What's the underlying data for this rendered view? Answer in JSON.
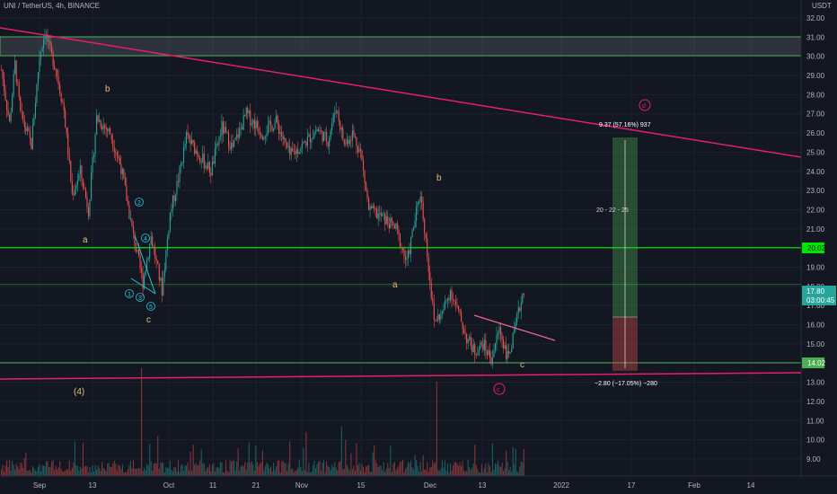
{
  "header": {
    "title": "UNI / TetherUS, 4h, BINANCE"
  },
  "price_axis": {
    "currency": "USDT"
  },
  "colors": {
    "background": "#131722",
    "grid": "#1e222d",
    "up": "#26a69a",
    "down": "#ef5350",
    "trend": "#e91e63",
    "level": "#4caf50",
    "bright_level": "#00e600",
    "text": "#b2b5be",
    "wave": "#e0c074",
    "cyan": "#26c6da"
  },
  "badges": {
    "level_20": "20.02",
    "level_14": "14.02",
    "current_price": "17.80",
    "countdown": "03:00:45"
  },
  "annotations": {
    "labels": [
      "b",
      "a",
      "c",
      "(4)",
      "b",
      "a",
      "c"
    ],
    "circled": [
      "1",
      "2",
      "3",
      "4",
      "5"
    ],
    "circled_c": "c",
    "circled_d": "d"
  },
  "measure": {
    "top_text": "9.37 (57.16%) 937",
    "mid_text": "20 - 22 - 25",
    "bottom_text": "−2.80 (−17.05%) −280"
  },
  "chart_data": {
    "type": "candlestick",
    "title": "UNI / TetherUS, 4h, BINANCE",
    "ylabel": "USDT",
    "ylim": [
      8.2,
      32.8
    ],
    "y_ticks": [
      "32.00",
      "31.00",
      "30.00",
      "29.00",
      "28.00",
      "27.00",
      "26.00",
      "25.00",
      "24.00",
      "23.00",
      "22.00",
      "21.00",
      "20.00",
      "19.00",
      "18.00",
      "17.00",
      "16.00",
      "15.00",
      "14.00",
      "13.00",
      "12.00",
      "11.00",
      "10.00",
      "9.00"
    ],
    "x_ticks": [
      "Sep",
      "13",
      "Oct",
      "11",
      "21",
      "Nov",
      "15",
      "Dec",
      "13",
      "2022",
      "17",
      "Feb",
      "14"
    ],
    "price_path": [
      {
        "t": 0,
        "p": 29.3
      },
      {
        "t": 6,
        "p": 26.5
      },
      {
        "t": 10,
        "p": 29.6
      },
      {
        "t": 14,
        "p": 27.0
      },
      {
        "t": 22,
        "p": 25.4
      },
      {
        "t": 28,
        "p": 30.0
      },
      {
        "t": 32,
        "p": 31.3
      },
      {
        "t": 36,
        "p": 30.2
      },
      {
        "t": 40,
        "p": 29.4
      },
      {
        "t": 46,
        "p": 27.2
      },
      {
        "t": 52,
        "p": 22.8
      },
      {
        "t": 58,
        "p": 24.0
      },
      {
        "t": 64,
        "p": 22.0
      },
      {
        "t": 70,
        "p": 26.8
      },
      {
        "t": 80,
        "p": 26.0
      },
      {
        "t": 88,
        "p": 24.2
      },
      {
        "t": 96,
        "p": 21.0
      },
      {
        "t": 104,
        "p": 18.2
      },
      {
        "t": 110,
        "p": 20.6
      },
      {
        "t": 118,
        "p": 17.8
      },
      {
        "t": 124,
        "p": 21.8
      },
      {
        "t": 130,
        "p": 23.6
      },
      {
        "t": 136,
        "p": 25.8
      },
      {
        "t": 146,
        "p": 24.8
      },
      {
        "t": 154,
        "p": 24.0
      },
      {
        "t": 162,
        "p": 26.3
      },
      {
        "t": 170,
        "p": 25.2
      },
      {
        "t": 180,
        "p": 27.0
      },
      {
        "t": 192,
        "p": 26.0
      },
      {
        "t": 202,
        "p": 26.6
      },
      {
        "t": 212,
        "p": 24.8
      },
      {
        "t": 222,
        "p": 25.4
      },
      {
        "t": 232,
        "p": 26.2
      },
      {
        "t": 240,
        "p": 25.6
      },
      {
        "t": 246,
        "p": 27.4
      },
      {
        "t": 252,
        "p": 25.4
      },
      {
        "t": 258,
        "p": 26.0
      },
      {
        "t": 264,
        "p": 25.0
      },
      {
        "t": 270,
        "p": 22.0
      },
      {
        "t": 280,
        "p": 21.6
      },
      {
        "t": 290,
        "p": 21.0
      },
      {
        "t": 298,
        "p": 19.2
      },
      {
        "t": 304,
        "p": 21.5
      },
      {
        "t": 308,
        "p": 22.9
      },
      {
        "t": 312,
        "p": 20.4
      },
      {
        "t": 318,
        "p": 16.2
      },
      {
        "t": 324,
        "p": 16.6
      },
      {
        "t": 330,
        "p": 17.8
      },
      {
        "t": 336,
        "p": 16.6
      },
      {
        "t": 342,
        "p": 15.3
      },
      {
        "t": 348,
        "p": 14.6
      },
      {
        "t": 354,
        "p": 15.0
      },
      {
        "t": 360,
        "p": 14.2
      },
      {
        "t": 366,
        "p": 15.8
      },
      {
        "t": 372,
        "p": 14.3
      },
      {
        "t": 376,
        "p": 15.2
      },
      {
        "t": 380,
        "p": 16.6
      },
      {
        "t": 384,
        "p": 17.9
      }
    ],
    "horizontal_levels": [
      31.0,
      30.0,
      20.02,
      18.1,
      14.02
    ],
    "trendlines": [
      {
        "from": {
          "date": "Aug 26",
          "price": 31.7
        },
        "to": {
          "date": "Jan 27",
          "price": 24.7
        }
      },
      {
        "from": {
          "date": "Aug 26",
          "price": 13.1
        },
        "to": {
          "date": "Jan 27",
          "price": 13.5
        }
      }
    ],
    "measure_tool": {
      "entry": 16.4,
      "target": 25.77,
      "stop": 13.6
    },
    "current_price": 17.8
  }
}
